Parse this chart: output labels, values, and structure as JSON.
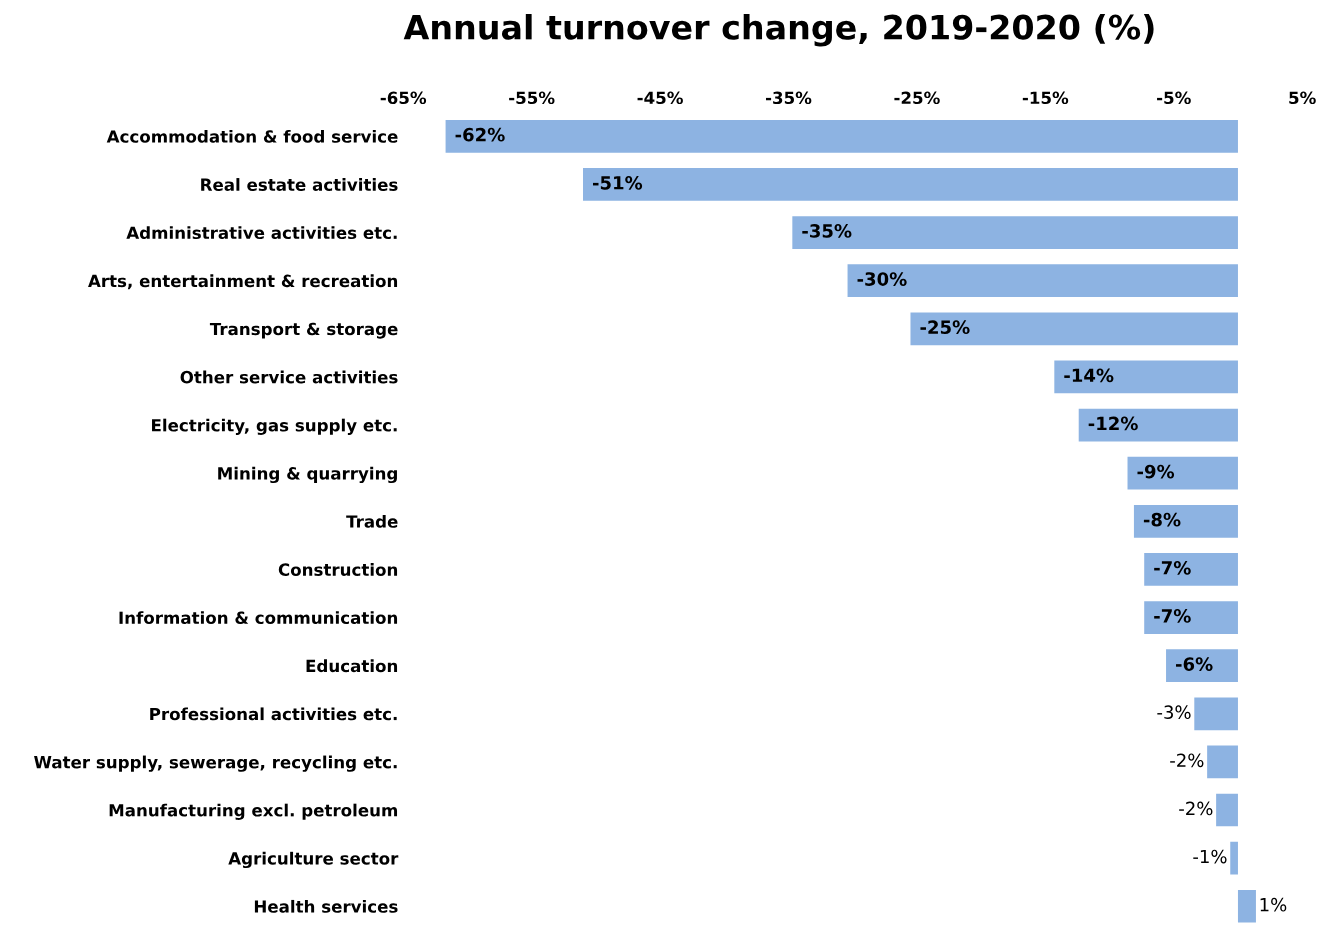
{
  "chart_data": {
    "type": "bar",
    "orientation": "horizontal",
    "title": "Annual turnover change, 2019-2020 (%)",
    "categories": [
      "Accommodation & food service",
      "Real estate activities",
      "Administrative activities etc.",
      "Arts, entertainment & recreation",
      "Transport & storage",
      "Other service activities",
      "Electricity, gas supply etc.",
      "Mining & quarrying",
      "Trade",
      "Construction",
      "Information & communication",
      "Education",
      "Professional activities etc.",
      "Water supply, sewerage, recycling etc.",
      "Manufacturing excl. petroleum",
      "Agriculture sector",
      "Health services"
    ],
    "values": [
      -61.7,
      -51.0,
      -34.7,
      -30.4,
      -25.5,
      -14.3,
      -12.4,
      -8.6,
      -8.1,
      -7.3,
      -7.3,
      -5.6,
      -3.4,
      -2.4,
      -1.7,
      -0.6,
      1.4
    ],
    "value_labels": [
      "-62%",
      "-51%",
      "-35%",
      "-30%",
      "-25%",
      "-14%",
      "-12%",
      "-9%",
      "-8%",
      "-7%",
      "-7%",
      "-6%",
      "-3%",
      "-2%",
      "-2%",
      "-1%",
      "1%"
    ],
    "color": "#8db3e2",
    "xlim": [
      -65,
      5
    ],
    "xticks": [
      {
        "value": -65,
        "label": "-65%"
      },
      {
        "value": -55,
        "label": "-55%"
      },
      {
        "value": -45,
        "label": "-45%"
      },
      {
        "value": -35,
        "label": "-35%"
      },
      {
        "value": -25,
        "label": "-25%"
      },
      {
        "value": -15,
        "label": "-15%"
      },
      {
        "value": -5,
        "label": "-5%"
      },
      {
        "value": 5,
        "label": "5%"
      }
    ],
    "grid": false
  }
}
